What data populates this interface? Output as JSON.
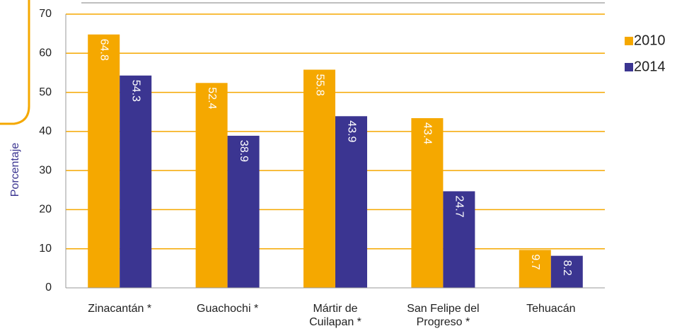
{
  "chart_data": {
    "type": "bar",
    "y_label": "Porcentaje",
    "categories": [
      "Zinacantán *",
      "Guachochi *",
      "Mártir de\nCuilapan *",
      "San Felipe del\nProgreso *",
      "Tehuacán"
    ],
    "series": [
      {
        "name": "2010",
        "color": "#f5a800",
        "values": [
          64.8,
          52.4,
          55.8,
          43.4,
          9.7
        ]
      },
      {
        "name": "2014",
        "color": "#3b3591",
        "values": [
          54.3,
          38.9,
          43.9,
          24.7,
          8.2
        ]
      }
    ],
    "ylim": [
      0,
      70
    ],
    "yticks": [
      0,
      10,
      20,
      30,
      40,
      50,
      60,
      70
    ],
    "grid": true,
    "legend": "right"
  }
}
